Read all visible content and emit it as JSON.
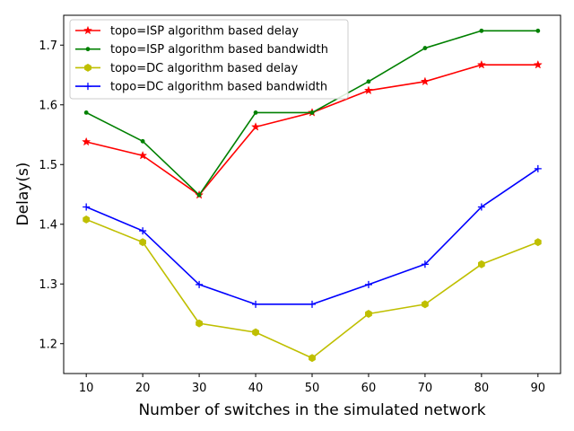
{
  "chart_data": {
    "type": "line",
    "title": "",
    "xlabel": "Number of switches in the simulated network",
    "ylabel": "Delay(s)",
    "x": [
      10,
      20,
      30,
      40,
      50,
      60,
      70,
      80,
      90
    ],
    "xlim": [
      6,
      94
    ],
    "ylim": [
      1.15,
      1.75
    ],
    "xticks": [
      "10",
      "20",
      "30",
      "40",
      "50",
      "60",
      "70",
      "80",
      "90"
    ],
    "yticks": [
      "1.2",
      "1.3",
      "1.4",
      "1.5",
      "1.6",
      "1.7"
    ],
    "grid": false,
    "legend_position": "top-left",
    "series": [
      {
        "name": "topo=ISP algorithm based delay",
        "color": "#ff0000",
        "marker": "star",
        "values": [
          1.538,
          1.515,
          1.449,
          1.563,
          1.587,
          1.624,
          1.639,
          1.667,
          1.667
        ]
      },
      {
        "name": "topo=ISP algorithm based bandwidth",
        "color": "#008000",
        "marker": "point",
        "values": [
          1.587,
          1.539,
          1.449,
          1.587,
          1.587,
          1.639,
          1.695,
          1.724,
          1.724
        ]
      },
      {
        "name": "topo=DC algorithm based delay",
        "color": "#bfbf00",
        "marker": "hexagon",
        "values": [
          1.408,
          1.37,
          1.234,
          1.219,
          1.176,
          1.25,
          1.266,
          1.333,
          1.37
        ]
      },
      {
        "name": "topo=DC algorithm based bandwidth",
        "color": "#0000ff",
        "marker": "plus",
        "values": [
          1.429,
          1.389,
          1.299,
          1.266,
          1.266,
          1.299,
          1.333,
          1.429,
          1.493
        ]
      }
    ]
  }
}
